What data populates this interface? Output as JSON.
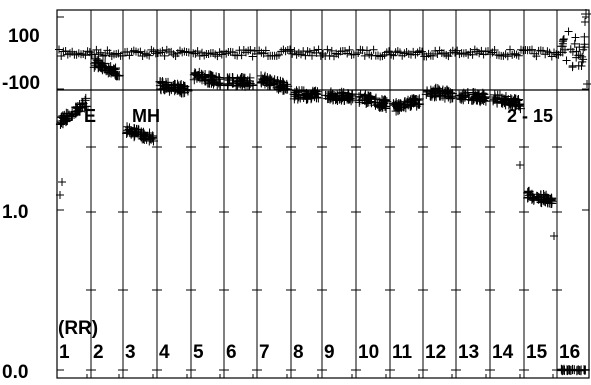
{
  "chart_data": {
    "type": "scatter",
    "marker": "plus",
    "colors": {
      "ink": "#000000",
      "background": "#ffffff"
    },
    "grid": true,
    "top_panel": {
      "yticks": [
        "100",
        "-100"
      ],
      "ylim": [
        -150,
        180
      ],
      "series_level": 0
    },
    "main_panel": {
      "yticks": [
        "1.0",
        "0.0"
      ],
      "tick_values": [
        1.0,
        0.0
      ],
      "annotation_right": "2 - 15",
      "annotation_left_partial": "E",
      "annotation_mid_partial": "MH"
    },
    "bands": {
      "header": "(RR)",
      "labels": [
        "1",
        "2",
        "3",
        "4",
        "5",
        "6",
        "7",
        "8",
        "9",
        "10",
        "11",
        "12",
        "13",
        "14",
        "15",
        "16"
      ]
    },
    "band_levels": [
      [
        1.55,
        1.68
      ],
      [
        1.92,
        1.85
      ],
      [
        1.5,
        1.45
      ],
      [
        1.78,
        1.75
      ],
      [
        1.84,
        1.8
      ],
      [
        1.8,
        1.8
      ],
      [
        1.82,
        1.76
      ],
      [
        1.72,
        1.72
      ],
      [
        1.72,
        1.7
      ],
      [
        1.7,
        1.66
      ],
      [
        1.64,
        1.68
      ],
      [
        1.74,
        1.72
      ],
      [
        1.72,
        1.7
      ],
      [
        1.7,
        1.66
      ],
      [
        1.1,
        1.05
      ],
      [
        0.0,
        0.0
      ]
    ]
  }
}
